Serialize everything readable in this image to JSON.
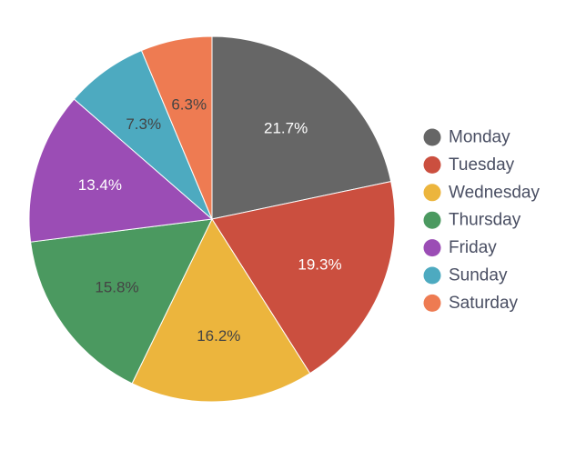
{
  "chart_data": {
    "type": "pie",
    "title": "",
    "categories": [
      "Monday",
      "Tuesday",
      "Wednesday",
      "Thursday",
      "Friday",
      "Sunday",
      "Saturday"
    ],
    "values": [
      21.7,
      19.3,
      16.2,
      15.8,
      13.4,
      7.3,
      6.3
    ],
    "labels": [
      "21.7%",
      "19.3%",
      "16.2%",
      "15.8%",
      "13.4%",
      "7.3%",
      "6.3%"
    ],
    "colors": [
      "#666666",
      "#cb4f3f",
      "#ecb53d",
      "#4b9960",
      "#9b4db5",
      "#4daac0",
      "#ee7b52"
    ],
    "label_colors": [
      "#ffffff",
      "#ffffff",
      "#444444",
      "#444444",
      "#ffffff",
      "#444444",
      "#444444"
    ],
    "start_direction": "top",
    "rotation": "clockwise",
    "legend": {
      "position": "right",
      "entries": [
        "Monday",
        "Tuesday",
        "Wednesday",
        "Thursday",
        "Friday",
        "Sunday",
        "Saturday"
      ]
    }
  }
}
